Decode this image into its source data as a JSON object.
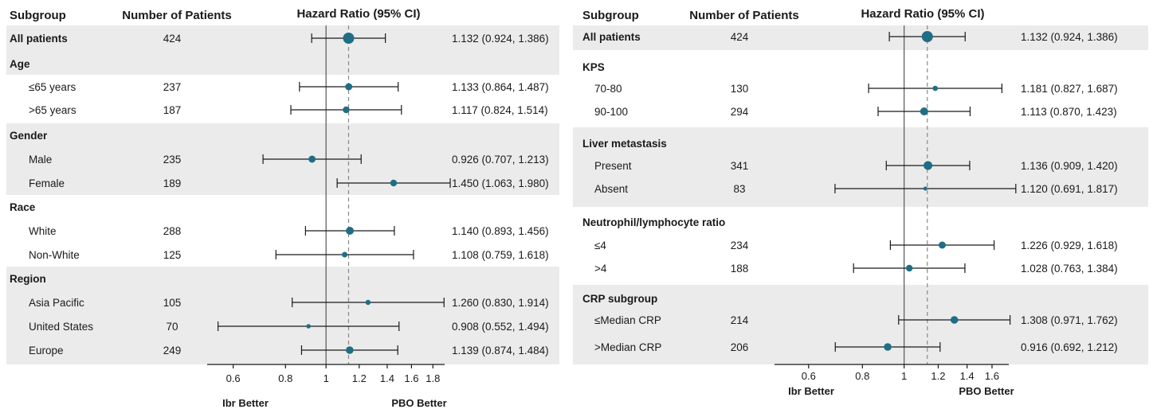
{
  "colors": {
    "marker": "#1f6e85",
    "band": "#ebebeb",
    "line": "#1a1a1a",
    "ref_line": "#555555",
    "dashed_line": "#888888"
  },
  "chart_data": [
    {
      "type": "forest",
      "headers": {
        "subgroup": "Subgroup",
        "patients": "Number of Patients",
        "hr": "Hazard Ratio (95% CI)"
      },
      "x_scale": "log",
      "xlim": [
        0.52,
        1.92
      ],
      "xticks": [
        "0.6",
        "0.8",
        "1",
        "1.2",
        "1.4",
        "1.6",
        "1.8"
      ],
      "xtick_values": [
        0.6,
        0.8,
        1.0,
        1.2,
        1.4,
        1.6,
        1.8
      ],
      "reference_line": 1.0,
      "overall_line": 1.132,
      "left_label": "Ibr Better",
      "right_label": "PBO Better",
      "rows": [
        {
          "label": "All patients",
          "bold": true,
          "n": "424",
          "hr": 1.132,
          "lo": 0.924,
          "hi": 1.386,
          "ci_text": "1.132 (0.924, 1.386)",
          "size": 7
        },
        {
          "label": "Age",
          "bold": true,
          "heading": true
        },
        {
          "label": "≤65 years",
          "n": "237",
          "hr": 1.133,
          "lo": 0.864,
          "hi": 1.487,
          "ci_text": "1.133 (0.864, 1.487)",
          "size": 4.5
        },
        {
          "label": ">65 years",
          "n": "187",
          "hr": 1.117,
          "lo": 0.824,
          "hi": 1.514,
          "ci_text": "1.117 (0.824, 1.514)",
          "size": 4.2
        },
        {
          "label": "Gender",
          "bold": true,
          "heading": true
        },
        {
          "label": "Male",
          "n": "235",
          "hr": 0.926,
          "lo": 0.707,
          "hi": 1.213,
          "ci_text": "0.926 (0.707, 1.213)",
          "size": 4.5
        },
        {
          "label": "Female",
          "n": "189",
          "hr": 1.45,
          "lo": 1.063,
          "hi": 1.98,
          "ci_text": "1.450 (1.063, 1.980)",
          "size": 4.2
        },
        {
          "label": "Race",
          "bold": true,
          "heading": true
        },
        {
          "label": "White",
          "n": "288",
          "hr": 1.14,
          "lo": 0.893,
          "hi": 1.456,
          "ci_text": "1.140 (0.893, 1.456)",
          "size": 5
        },
        {
          "label": "Non-White",
          "n": "125",
          "hr": 1.108,
          "lo": 0.759,
          "hi": 1.618,
          "ci_text": "1.108 (0.759, 1.618)",
          "size": 3.5
        },
        {
          "label": "Region",
          "bold": true,
          "heading": true
        },
        {
          "label": "Asia Pacific",
          "n": "105",
          "hr": 1.26,
          "lo": 0.83,
          "hi": 1.914,
          "ci_text": "1.260 (0.830, 1.914)",
          "size": 3.2
        },
        {
          "label": "United States",
          "n": "70",
          "hr": 0.908,
          "lo": 0.552,
          "hi": 1.494,
          "ci_text": "0.908 (0.552, 1.494)",
          "size": 2.8
        },
        {
          "label": "Europe",
          "n": "249",
          "hr": 1.139,
          "lo": 0.874,
          "hi": 1.484,
          "ci_text": "1.139 (0.874, 1.484)",
          "size": 4.8
        }
      ]
    },
    {
      "type": "forest",
      "headers": {
        "subgroup": "Subgroup",
        "patients": "Number of Patients",
        "hr": "Hazard Ratio (95% CI)"
      },
      "x_scale": "log",
      "xlim": [
        0.5,
        1.75
      ],
      "xticks": [
        "0.6",
        "0.8",
        "1",
        "1.2",
        "1.4",
        "1.6"
      ],
      "xtick_values": [
        0.6,
        0.8,
        1.0,
        1.2,
        1.4,
        1.6
      ],
      "reference_line": 1.0,
      "overall_line": 1.132,
      "left_label": "Ibr Better",
      "right_label": "PBO Better",
      "rows": [
        {
          "label": "All patients",
          "bold": true,
          "n": "424",
          "hr": 1.132,
          "lo": 0.924,
          "hi": 1.386,
          "ci_text": "1.132 (0.924, 1.386)",
          "size": 7
        },
        {
          "label": "KPS",
          "bold": true,
          "heading": true
        },
        {
          "label": "70-80",
          "n": "130",
          "hr": 1.181,
          "lo": 0.827,
          "hi": 1.687,
          "ci_text": "1.181 (0.827, 1.687)",
          "size": 3.3
        },
        {
          "label": "90-100",
          "n": "294",
          "hr": 1.113,
          "lo": 0.87,
          "hi": 1.423,
          "ci_text": "1.113 (0.870, 1.423)",
          "size": 5
        },
        {
          "label": "Liver metastasis",
          "bold": true,
          "heading": true
        },
        {
          "label": "Present",
          "n": "341",
          "hr": 1.136,
          "lo": 0.909,
          "hi": 1.42,
          "ci_text": "1.136 (0.909, 1.420)",
          "size": 5.5
        },
        {
          "label": "Absent",
          "n": "83",
          "hr": 1.12,
          "lo": 0.691,
          "hi": 1.817,
          "ci_text": "1.120 (0.691, 1.817)",
          "size": 2.5
        },
        {
          "label": "Neutrophil/lymphocyte ratio",
          "bold": true,
          "heading": true
        },
        {
          "label": "≤4",
          "n": "234",
          "hr": 1.226,
          "lo": 0.929,
          "hi": 1.618,
          "ci_text": "1.226 (0.929, 1.618)",
          "size": 4.5
        },
        {
          "label": ">4",
          "n": "188",
          "hr": 1.028,
          "lo": 0.763,
          "hi": 1.384,
          "ci_text": "1.028 (0.763, 1.384)",
          "size": 4.2
        },
        {
          "label": "CRP subgroup",
          "bold": true,
          "heading": true
        },
        {
          "label": "≤Median CRP",
          "n": "214",
          "hr": 1.308,
          "lo": 0.971,
          "hi": 1.762,
          "ci_text": "1.308 (0.971, 1.762)",
          "size": 4.8
        },
        {
          "label": ">Median CRP",
          "n": "206",
          "hr": 0.916,
          "lo": 0.692,
          "hi": 1.212,
          "ci_text": "0.916 (0.692, 1.212)",
          "size": 4.8
        }
      ]
    }
  ]
}
